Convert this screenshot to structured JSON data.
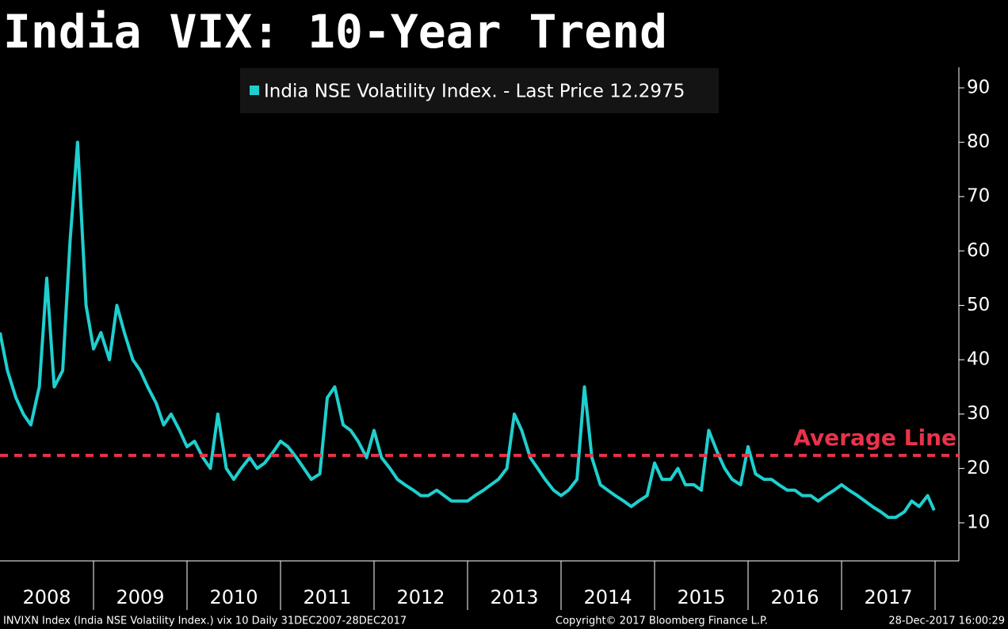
{
  "chart_data": {
    "type": "line",
    "title": "India VIX: 10-Year Trend",
    "x": [
      2008.0,
      2008.08,
      2008.17,
      2008.25,
      2008.33,
      2008.42,
      2008.5,
      2008.58,
      2008.67,
      2008.75,
      2008.83,
      2008.92,
      2009.0,
      2009.08,
      2009.17,
      2009.25,
      2009.33,
      2009.42,
      2009.5,
      2009.58,
      2009.67,
      2009.75,
      2009.83,
      2009.92,
      2010.0,
      2010.08,
      2010.17,
      2010.25,
      2010.33,
      2010.42,
      2010.5,
      2010.58,
      2010.67,
      2010.75,
      2010.83,
      2010.92,
      2011.0,
      2011.08,
      2011.17,
      2011.25,
      2011.33,
      2011.42,
      2011.5,
      2011.58,
      2011.67,
      2011.75,
      2011.83,
      2011.92,
      2012.0,
      2012.08,
      2012.17,
      2012.25,
      2012.33,
      2012.42,
      2012.5,
      2012.58,
      2012.67,
      2012.75,
      2012.83,
      2012.92,
      2013.0,
      2013.08,
      2013.17,
      2013.25,
      2013.33,
      2013.42,
      2013.5,
      2013.58,
      2013.67,
      2013.75,
      2013.83,
      2013.92,
      2014.0,
      2014.08,
      2014.17,
      2014.25,
      2014.33,
      2014.42,
      2014.5,
      2014.58,
      2014.67,
      2014.75,
      2014.83,
      2014.92,
      2015.0,
      2015.08,
      2015.17,
      2015.25,
      2015.33,
      2015.42,
      2015.5,
      2015.58,
      2015.67,
      2015.75,
      2015.83,
      2015.92,
      2016.0,
      2016.08,
      2016.17,
      2016.25,
      2016.33,
      2016.42,
      2016.5,
      2016.58,
      2016.67,
      2016.75,
      2016.83,
      2016.92,
      2017.0,
      2017.08,
      2017.17,
      2017.25,
      2017.33,
      2017.42,
      2017.5,
      2017.58,
      2017.67,
      2017.75,
      2017.83,
      2017.92,
      2017.99
    ],
    "series": [
      {
        "name": "India NSE Volatility Index. - Last Price 12.2975",
        "color": "#1fcfcf",
        "values": [
          45,
          38,
          33,
          30,
          28,
          35,
          55,
          35,
          38,
          62,
          80,
          50,
          42,
          45,
          40,
          50,
          45,
          40,
          38,
          35,
          32,
          28,
          30,
          27,
          24,
          25,
          22,
          20,
          30,
          20,
          18,
          20,
          22,
          20,
          21,
          23,
          25,
          24,
          22,
          20,
          18,
          19,
          33,
          35,
          28,
          27,
          25,
          22,
          27,
          22,
          20,
          18,
          17,
          16,
          15,
          15,
          16,
          15,
          14,
          14,
          14,
          15,
          16,
          17,
          18,
          20,
          30,
          27,
          22,
          20,
          18,
          16,
          15,
          16,
          18,
          35,
          22,
          17,
          16,
          15,
          14,
          13,
          14,
          15,
          21,
          18,
          18,
          20,
          17,
          17,
          16,
          27,
          23,
          20,
          18,
          17,
          24,
          19,
          18,
          18,
          17,
          16,
          16,
          15,
          15,
          14,
          15,
          16,
          17,
          16,
          15,
          14,
          13,
          12,
          11,
          11,
          12,
          14,
          13,
          15,
          12.2975
        ]
      }
    ],
    "xlim": [
      2008,
      2018
    ],
    "xticks": [
      {
        "value": 2008.5,
        "label": "2008"
      },
      {
        "value": 2009.5,
        "label": "2009"
      },
      {
        "value": 2010.5,
        "label": "2010"
      },
      {
        "value": 2011.5,
        "label": "2011"
      },
      {
        "value": 2012.5,
        "label": "2012"
      },
      {
        "value": 2013.5,
        "label": "2013"
      },
      {
        "value": 2014.5,
        "label": "2014"
      },
      {
        "value": 2015.5,
        "label": "2015"
      },
      {
        "value": 2016.5,
        "label": "2016"
      },
      {
        "value": 2017.5,
        "label": "2017"
      }
    ],
    "ylim": [
      3,
      94
    ],
    "yticks": [
      10,
      20,
      30,
      40,
      50,
      60,
      70,
      80,
      90
    ],
    "annotations": [
      {
        "text": "Average Line",
        "value": 22.4,
        "color": "#e8334a"
      }
    ],
    "footer": {
      "left": "INVIXN Index (India NSE Volatility Index.) vix 10  Daily 31DEC2007-28DEC2017",
      "middle": "Copyright© 2017 Bloomberg Finance L.P.",
      "right": "28-Dec-2017 16:00:29"
    }
  }
}
